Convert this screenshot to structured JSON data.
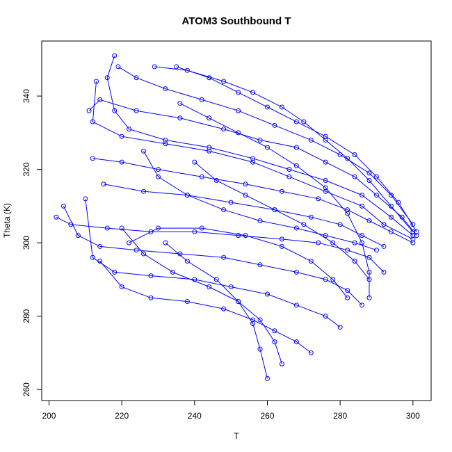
{
  "chart_data": {
    "type": "scatter",
    "title": "ATOM3 Southbound T",
    "xlabel": "T",
    "ylabel": "Theta (K)",
    "xlim": [
      198,
      305
    ],
    "ylim": [
      257,
      355
    ],
    "x_ticks": [
      200,
      220,
      240,
      260,
      280,
      300
    ],
    "y_ticks": [
      260,
      280,
      300,
      320,
      340
    ],
    "grid": false,
    "legend": "none",
    "marker": "open-circle",
    "line": true,
    "color": "#0000ff",
    "series": [
      {
        "points": [
          [
            218,
            351
          ],
          [
            216,
            345
          ],
          [
            218,
            336
          ],
          [
            222,
            331
          ],
          [
            232,
            328
          ],
          [
            244,
            326
          ],
          [
            256,
            323
          ],
          [
            266,
            320
          ],
          [
            276,
            317
          ],
          [
            286,
            313
          ],
          [
            294,
            307
          ],
          [
            300,
            302
          ]
        ]
      },
      {
        "points": [
          [
            229,
            348
          ],
          [
            238,
            347
          ],
          [
            248,
            344
          ],
          [
            256,
            341
          ],
          [
            264,
            337
          ],
          [
            270,
            333
          ],
          [
            276,
            328
          ],
          [
            282,
            323
          ],
          [
            288,
            317
          ],
          [
            294,
            310
          ],
          [
            300,
            303
          ]
        ]
      },
      {
        "points": [
          [
            235,
            348
          ],
          [
            244,
            345
          ],
          [
            252,
            341
          ],
          [
            260,
            337
          ],
          [
            268,
            333
          ],
          [
            276,
            329
          ],
          [
            284,
            324
          ],
          [
            290,
            318
          ],
          [
            296,
            311
          ],
          [
            301,
            303
          ]
        ]
      },
      {
        "points": [
          [
            219,
            348
          ],
          [
            224,
            345
          ],
          [
            232,
            342
          ],
          [
            242,
            339
          ],
          [
            252,
            336
          ],
          [
            262,
            332
          ],
          [
            272,
            328
          ],
          [
            280,
            324
          ],
          [
            288,
            319
          ],
          [
            294,
            313
          ],
          [
            300,
            305
          ]
        ]
      },
      {
        "points": [
          [
            211,
            336
          ],
          [
            214,
            339
          ],
          [
            224,
            336
          ],
          [
            236,
            334
          ],
          [
            248,
            331
          ],
          [
            258,
            328
          ],
          [
            268,
            326
          ],
          [
            276,
            322
          ],
          [
            284,
            318
          ],
          [
            290,
            313
          ],
          [
            297,
            307
          ],
          [
            301,
            302
          ]
        ]
      },
      {
        "points": [
          [
            213,
            344
          ],
          [
            212,
            333
          ],
          [
            220,
            329
          ],
          [
            232,
            327
          ],
          [
            244,
            325
          ],
          [
            256,
            322
          ],
          [
            266,
            318
          ],
          [
            276,
            314
          ],
          [
            286,
            310
          ],
          [
            292,
            305
          ],
          [
            300,
            301
          ]
        ]
      },
      {
        "points": [
          [
            212,
            323
          ],
          [
            220,
            322
          ],
          [
            230,
            320
          ],
          [
            242,
            318
          ],
          [
            254,
            316
          ],
          [
            264,
            314
          ],
          [
            274,
            312
          ],
          [
            282,
            309
          ],
          [
            288,
            306
          ],
          [
            294,
            303
          ],
          [
            300,
            300
          ]
        ]
      },
      {
        "points": [
          [
            215,
            316
          ],
          [
            226,
            314
          ],
          [
            238,
            313
          ],
          [
            250,
            311
          ],
          [
            262,
            309
          ],
          [
            272,
            307
          ],
          [
            280,
            305
          ],
          [
            286,
            302
          ],
          [
            292,
            299
          ]
        ]
      },
      {
        "points": [
          [
            202,
            307
          ],
          [
            206,
            305
          ],
          [
            216,
            304
          ],
          [
            228,
            303
          ],
          [
            240,
            303
          ],
          [
            252,
            302
          ],
          [
            264,
            301
          ],
          [
            274,
            300
          ],
          [
            282,
            298
          ],
          [
            288,
            296
          ],
          [
            292,
            292
          ]
        ]
      },
      {
        "points": [
          [
            204,
            310
          ],
          [
            208,
            302
          ],
          [
            214,
            299
          ],
          [
            224,
            298
          ],
          [
            236,
            297
          ],
          [
            248,
            296
          ],
          [
            258,
            294
          ],
          [
            268,
            292
          ],
          [
            276,
            290
          ],
          [
            282,
            287
          ],
          [
            286,
            283
          ]
        ]
      },
      {
        "points": [
          [
            210,
            312
          ],
          [
            212,
            296
          ],
          [
            218,
            292
          ],
          [
            228,
            291
          ],
          [
            240,
            290
          ],
          [
            250,
            288
          ],
          [
            260,
            286
          ],
          [
            268,
            283
          ],
          [
            276,
            280
          ],
          [
            280,
            277
          ]
        ]
      },
      {
        "points": [
          [
            214,
            295
          ],
          [
            220,
            288
          ],
          [
            228,
            285
          ],
          [
            238,
            284
          ],
          [
            248,
            282
          ],
          [
            256,
            279
          ],
          [
            262,
            276
          ],
          [
            268,
            273
          ],
          [
            272,
            270
          ]
        ]
      },
      {
        "points": [
          [
            220,
            304
          ],
          [
            226,
            297
          ],
          [
            234,
            292
          ],
          [
            244,
            288
          ],
          [
            252,
            284
          ],
          [
            258,
            279
          ],
          [
            262,
            273
          ],
          [
            264,
            267
          ]
        ]
      },
      {
        "points": [
          [
            232,
            300
          ],
          [
            238,
            295
          ],
          [
            246,
            290
          ],
          [
            252,
            284
          ],
          [
            256,
            278
          ],
          [
            258,
            271
          ],
          [
            260,
            263
          ]
        ]
      },
      {
        "points": [
          [
            226,
            325
          ],
          [
            230,
            318
          ],
          [
            238,
            313
          ],
          [
            248,
            309
          ],
          [
            258,
            306
          ],
          [
            268,
            304
          ],
          [
            276,
            302
          ],
          [
            284,
            300
          ],
          [
            290,
            298
          ]
        ]
      },
      {
        "points": [
          [
            240,
            322
          ],
          [
            246,
            317
          ],
          [
            254,
            313
          ],
          [
            262,
            309
          ],
          [
            270,
            305
          ],
          [
            278,
            300
          ],
          [
            284,
            295
          ],
          [
            288,
            290
          ]
        ]
      },
      {
        "points": [
          [
            236,
            338
          ],
          [
            244,
            334
          ],
          [
            252,
            330
          ],
          [
            260,
            326
          ],
          [
            268,
            321
          ],
          [
            276,
            315
          ],
          [
            282,
            308
          ],
          [
            286,
            300
          ],
          [
            288,
            292
          ],
          [
            288,
            285
          ]
        ]
      },
      {
        "points": [
          [
            222,
            300
          ],
          [
            230,
            304
          ],
          [
            242,
            304
          ],
          [
            254,
            302
          ],
          [
            264,
            299
          ],
          [
            272,
            295
          ],
          [
            278,
            290
          ],
          [
            282,
            285
          ]
        ]
      }
    ]
  }
}
